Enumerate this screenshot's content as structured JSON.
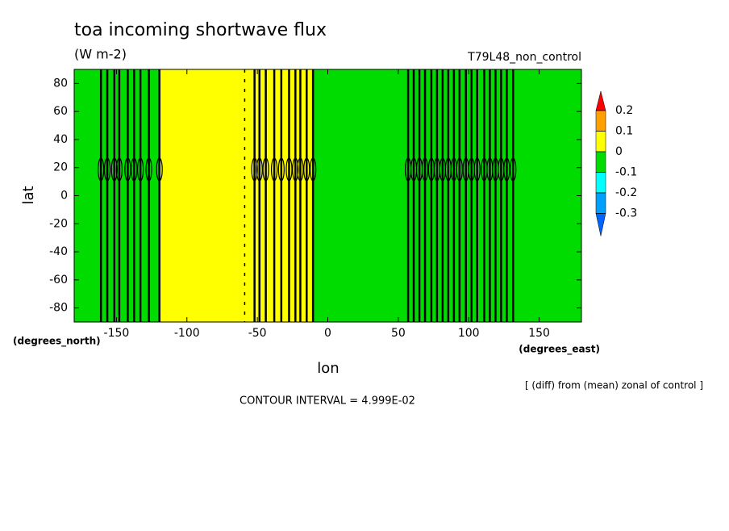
{
  "chart_data": {
    "type": "contour",
    "title": "toa incoming shortwave flux",
    "subtitle": "(W m-2)",
    "run_label": "T79L48_non_control",
    "x_label": "lon",
    "y_label": "lat",
    "x_unit": "(degrees_east)",
    "y_unit": "(degrees_north)",
    "note": "[ (diff) from (mean) zonal of control ]",
    "footer": "CONTOUR INTERVAL = 4.999E-02",
    "xlim": [
      -180,
      180
    ],
    "ylim": [
      -90,
      90
    ],
    "xticks": [
      -150,
      -100,
      -50,
      0,
      50,
      100,
      150
    ],
    "yticks": [
      -80,
      -60,
      -40,
      -20,
      0,
      20,
      40,
      60,
      80
    ],
    "regions": [
      {
        "from": -180,
        "to": -120,
        "color": "#00dc00"
      },
      {
        "from": -120,
        "to": -11,
        "color": "#ffff00"
      },
      {
        "from": -11,
        "to": 180,
        "color": "#00dc00"
      }
    ],
    "contour_lons": [
      -161,
      -156.5,
      -151.5,
      -148,
      -142,
      -137.5,
      -133,
      -127,
      -119.5,
      -52,
      -48.5,
      -44,
      -38,
      -33,
      -27.5,
      -23,
      -19.5,
      -15,
      -10.5,
      57,
      61,
      65,
      69,
      73.5,
      77.5,
      81.5,
      85.5,
      89.5,
      93.5,
      98,
      102,
      106,
      111,
      115,
      119,
      123,
      127,
      131.5
    ],
    "dashed_contour_lons": [
      -59
    ],
    "colorbar": {
      "levels": [
        0.2,
        0.1,
        0,
        -0.1,
        -0.2,
        -0.3
      ],
      "colors": [
        "#ff0000",
        "#ffa000",
        "#ffff00",
        "#00dc00",
        "#00ffff",
        "#00a0ff",
        "#0064ff"
      ]
    }
  }
}
